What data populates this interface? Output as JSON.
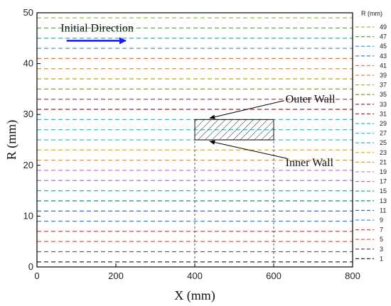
{
  "chart_data": {
    "type": "line",
    "xlabel": "X (mm)",
    "ylabel": "R (mm)",
    "xlim": [
      0,
      800
    ],
    "ylim": [
      0,
      50
    ],
    "xticks": [
      "0",
      "200",
      "400",
      "600",
      "800"
    ],
    "yticks": [
      "0",
      "10",
      "20",
      "30",
      "40",
      "50"
    ],
    "legend_title": "R (mm)",
    "legend_placement": "right",
    "grid": false,
    "series": [
      {
        "name": "49",
        "y": 49,
        "x": [
          0,
          800
        ],
        "color": "#8dc63f"
      },
      {
        "name": "47",
        "y": 47,
        "x": [
          0,
          800
        ],
        "color": "#4cae4c"
      },
      {
        "name": "45",
        "y": 45,
        "x": [
          0,
          800
        ],
        "color": "#40b0c8"
      },
      {
        "name": "43",
        "y": 43,
        "x": [
          0,
          800
        ],
        "color": "#5a8fd0"
      },
      {
        "name": "41",
        "y": 41,
        "x": [
          0,
          800
        ],
        "color": "#f07830"
      },
      {
        "name": "39",
        "y": 39,
        "x": [
          0,
          800
        ],
        "color": "#e09040"
      },
      {
        "name": "37",
        "y": 37,
        "x": [
          0,
          800
        ],
        "color": "#b8b030"
      },
      {
        "name": "35",
        "y": 35,
        "x": [
          0,
          800
        ],
        "color": "#90a030"
      },
      {
        "name": "33",
        "y": 33,
        "x": [
          0,
          800
        ],
        "color": "#a05050"
      },
      {
        "name": "31",
        "y": 31,
        "x": [
          0,
          800
        ],
        "color": "#b03030"
      },
      {
        "name": "29",
        "y": 29,
        "x": [
          0,
          800
        ],
        "color": "#20c0c0"
      },
      {
        "name": "27",
        "y": 27,
        "x": [
          0,
          800
        ],
        "color": "#30d0d0"
      },
      {
        "name": "25",
        "y": 25,
        "x": [
          0,
          800
        ],
        "color": "#40b8e0"
      },
      {
        "name": "23",
        "y": 23,
        "x": [
          0,
          800
        ],
        "color": "#f0b020"
      },
      {
        "name": "21",
        "y": 21,
        "x": [
          0,
          800
        ],
        "color": "#e0a030"
      },
      {
        "name": "19",
        "y": 19,
        "x": [
          0,
          800
        ],
        "color": "#d080e0"
      },
      {
        "name": "17",
        "y": 17,
        "x": [
          0,
          800
        ],
        "color": "#b070d0"
      },
      {
        "name": "15",
        "y": 15,
        "x": [
          0,
          800
        ],
        "color": "#30b890"
      },
      {
        "name": "13",
        "y": 13,
        "x": [
          0,
          800
        ],
        "color": "#20a070"
      },
      {
        "name": "11",
        "y": 11,
        "x": [
          0,
          800
        ],
        "color": "#2070d0"
      },
      {
        "name": "9",
        "y": 9,
        "x": [
          0,
          800
        ],
        "color": "#3090f0"
      },
      {
        "name": "7",
        "y": 7,
        "x": [
          0,
          800
        ],
        "color": "#e84040"
      },
      {
        "name": "5",
        "y": 5,
        "x": [
          0,
          800
        ],
        "color": "#f06060"
      },
      {
        "name": "3",
        "y": 3,
        "x": [
          0,
          800
        ],
        "color": "#606060"
      },
      {
        "name": "1",
        "y": 1,
        "x": [
          0,
          800
        ],
        "color": "#303030"
      }
    ],
    "wall_region": {
      "x": [
        400,
        600
      ],
      "y": [
        25,
        29
      ]
    },
    "wall_guides": {
      "x": [
        400,
        600
      ],
      "y": [
        0,
        25
      ]
    },
    "direction_arrow": {
      "x": [
        75,
        225
      ],
      "y": 44.5,
      "color": "#1a1aee"
    },
    "annotations": {
      "initial_direction": {
        "text": "Initial Direction",
        "x": 60,
        "y": 47
      },
      "outer_wall": {
        "text": "Outer Wall",
        "x": 630,
        "y": 33,
        "arrow_to": [
          510,
          29
        ]
      },
      "inner_wall": {
        "text": "Inner Wall",
        "x": 630,
        "y": 20.5,
        "arrow_to": [
          510,
          25
        ]
      }
    }
  }
}
